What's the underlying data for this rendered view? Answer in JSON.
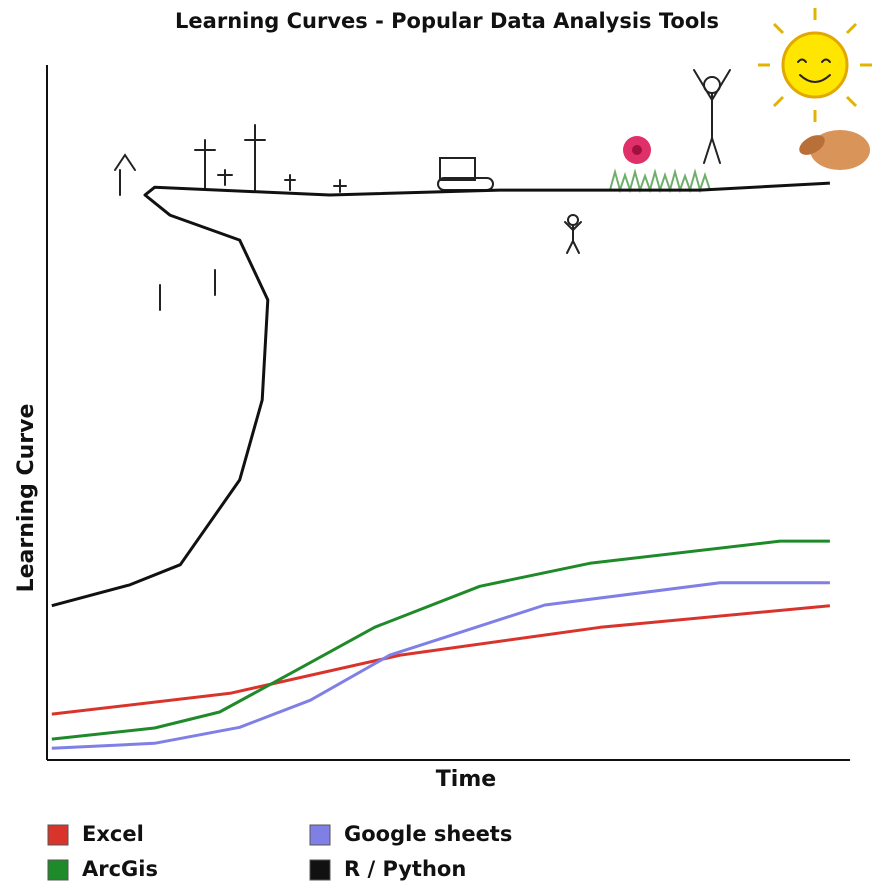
{
  "chart_data": {
    "type": "line",
    "title": "Learning Curves - Popular Data Analysis Tools",
    "xlabel": "Time",
    "ylabel": "Learning Curve",
    "xlim": [
      0,
      100
    ],
    "ylim": [
      0,
      100
    ],
    "series": [
      {
        "name": "Excel",
        "color": "#d9342b",
        "x": [
          0.6,
          22.8,
          44,
          68.9,
          97.5
        ],
        "values": [
          6.6,
          9.6,
          15.1,
          19.1,
          22.2
        ]
      },
      {
        "name": "ArcGis",
        "color": "#1f8a2a",
        "x": [
          0.6,
          13.4,
          21.5,
          31.5,
          40.8,
          53.9,
          67.6,
          91.3,
          97.5
        ],
        "values": [
          3,
          4.6,
          6.9,
          13.2,
          19.1,
          25,
          28.3,
          31.5,
          31.5
        ]
      },
      {
        "name": "Google sheets",
        "color": "#7f7fe6",
        "x": [
          0.6,
          13.4,
          24,
          32.8,
          42.7,
          62,
          83.8,
          97.5
        ],
        "values": [
          1.7,
          2.4,
          4.7,
          8.6,
          15.1,
          22.3,
          25.5,
          25.5
        ]
      },
      {
        "name": "R / Python",
        "color": "#111111",
        "x": [
          0.6,
          10.3,
          16.6,
          24,
          26.8,
          27.5,
          24,
          15.3,
          12.2,
          13.4,
          35.2,
          56.4,
          81.3,
          97.5
        ],
        "values": [
          22.2,
          25.2,
          28.1,
          40.3,
          51.8,
          66.2,
          74.8,
          78.4,
          81.3,
          82.4,
          81.3,
          82,
          82,
          83
        ]
      }
    ]
  }
}
